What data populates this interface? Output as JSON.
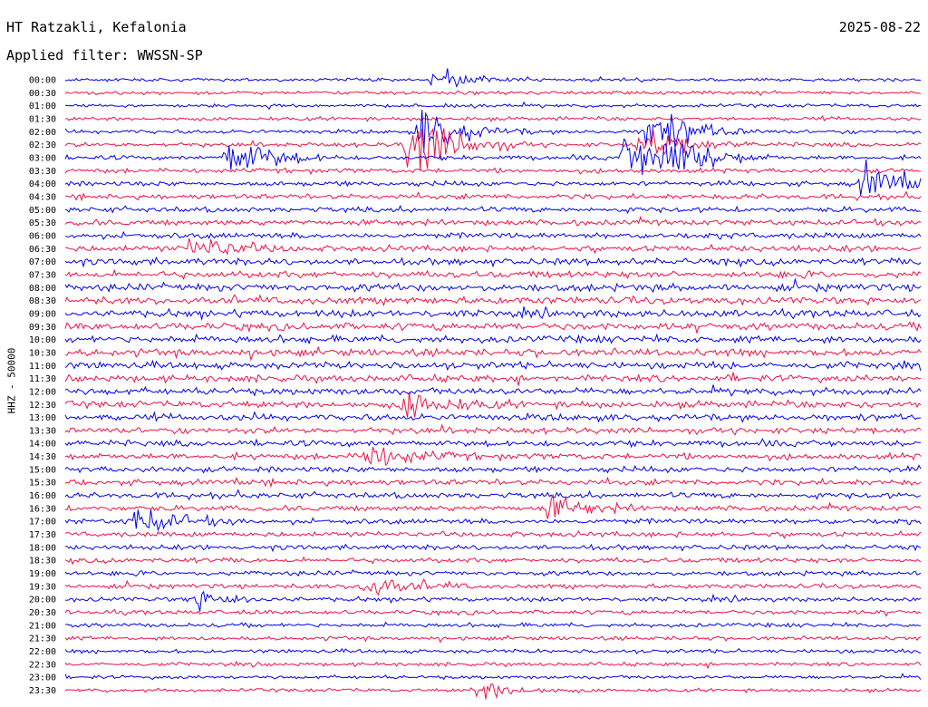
{
  "header": {
    "station": "HT Ratzakli, Kefalonia",
    "date": "2025-08-22",
    "filter_label": "Applied filter: WWSSN-SP"
  },
  "chart_data": {
    "type": "line",
    "title": "HT Ratzakli, Kefalonia",
    "ylabel": "HHZ - 50000",
    "row_labels": [
      "00:00",
      "00:30",
      "01:00",
      "01:30",
      "02:00",
      "02:30",
      "03:00",
      "03:30",
      "04:00",
      "04:30",
      "05:00",
      "05:30",
      "06:00",
      "06:30",
      "07:00",
      "07:30",
      "08:00",
      "08:30",
      "09:00",
      "09:30",
      "10:00",
      "10:30",
      "11:00",
      "11:30",
      "12:00",
      "12:30",
      "13:00",
      "13:30",
      "14:00",
      "14:30",
      "15:00",
      "15:30",
      "16:00",
      "16:30",
      "17:00",
      "17:30",
      "18:00",
      "18:30",
      "19:00",
      "19:30",
      "20:00",
      "20:30",
      "21:00",
      "21:30",
      "22:00",
      "22:30",
      "23:00",
      "23:30"
    ],
    "row_minutes": 30,
    "trace_colors": [
      "#0000ee",
      "#ee1144"
    ],
    "noise_level": [
      0.15,
      0.2,
      0.2,
      0.25,
      0.3,
      0.4,
      0.4,
      0.45,
      0.5,
      0.55,
      0.6,
      0.65,
      0.7,
      0.75,
      0.85,
      0.9,
      1.0,
      1.0,
      1.0,
      1.0,
      1.0,
      1.0,
      0.95,
      0.9,
      0.9,
      0.9,
      0.85,
      0.8,
      0.75,
      0.75,
      0.7,
      0.7,
      0.65,
      0.6,
      0.6,
      0.55,
      0.5,
      0.5,
      0.45,
      0.45,
      0.4,
      0.4,
      0.35,
      0.3,
      0.3,
      0.25,
      0.2,
      0.2
    ],
    "events": [
      {
        "row": 4,
        "minute": 12.5,
        "amplitude": 2.5
      },
      {
        "row": 5,
        "minute": 12.0,
        "amplitude": 2.0
      },
      {
        "row": 5,
        "minute": 12.4,
        "amplitude": 2.2
      },
      {
        "row": 0,
        "minute": 12.9,
        "amplitude": 1.0
      },
      {
        "row": 6,
        "minute": 5.8,
        "amplitude": 2.5
      },
      {
        "row": 4,
        "minute": 20.5,
        "amplitude": 3.0
      },
      {
        "row": 5,
        "minute": 20.3,
        "amplitude": 2.0
      },
      {
        "row": 6,
        "minute": 19.7,
        "amplitude": 2.5
      },
      {
        "row": 6,
        "minute": 21.0,
        "amplitude": 2.5
      },
      {
        "row": 8,
        "minute": 28.0,
        "amplitude": 2.0
      },
      {
        "row": 13,
        "minute": 4.5,
        "amplitude": 1.5
      },
      {
        "row": 25,
        "minute": 12.0,
        "amplitude": 1.5
      },
      {
        "row": 29,
        "minute": 10.5,
        "amplitude": 1.5
      },
      {
        "row": 33,
        "minute": 17.0,
        "amplitude": 1.2
      },
      {
        "row": 34,
        "minute": 2.5,
        "amplitude": 1.5
      },
      {
        "row": 39,
        "minute": 10.5,
        "amplitude": 1.2
      },
      {
        "row": 40,
        "minute": 4.5,
        "amplitude": 1.0
      },
      {
        "row": 47,
        "minute": 14.5,
        "amplitude": 1.0
      }
    ]
  }
}
